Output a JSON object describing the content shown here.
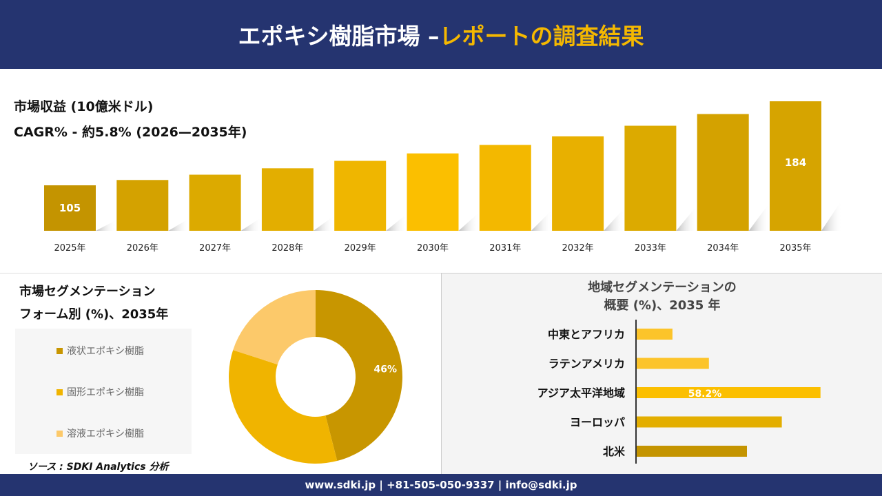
{
  "header": {
    "title_main": "エポキシ樹脂市場 – ",
    "title_accent": "レポートの調査結果"
  },
  "revenue": {
    "title": "市場収益 (10億米ドル)",
    "cagr": "CAGR% - 約5.8% (2026—2035年)"
  },
  "colors": {
    "navy": "#253470",
    "accent": "#f5b800"
  },
  "chart_data": [
    {
      "type": "bar",
      "categories": [
        "2025年",
        "2026年",
        "2027年",
        "2028年",
        "2029年",
        "2030年",
        "2031年",
        "2032年",
        "2033年",
        "2034年",
        "2035年"
      ],
      "values": [
        105,
        110,
        115,
        121,
        128,
        135,
        143,
        151,
        161,
        172,
        184
      ],
      "data_labels": {
        "0": "105",
        "10": "184"
      },
      "colors": [
        "#c49400",
        "#d4a200",
        "#dcaa00",
        "#e3ae00",
        "#efb600",
        "#fbbf00",
        "#f3b800",
        "#e8b000",
        "#dcaa00",
        "#d4a200",
        "#d6a400"
      ]
    },
    {
      "type": "pie",
      "title": "市場セグメンテーション フォーム別 (%)、2035年",
      "title_line1": "市場セグメンテーション",
      "title_line2": "フォーム別 (%)、2035年",
      "labels": [
        "液状エポキシ樹脂",
        "固形エポキシ樹脂",
        "溶液エポキシ樹脂"
      ],
      "values": [
        46,
        34,
        20
      ],
      "data_labels": [
        "46%",
        "",
        ""
      ],
      "colors": [
        "#c89600",
        "#f0b400",
        "#fcc96a"
      ],
      "legend": "left"
    },
    {
      "type": "bar",
      "orientation": "horizontal",
      "title_line1": "地域セグメンテーションの",
      "title_line2": "概要 (%)、2035 年",
      "categories": [
        "中東とアフリカ",
        "ラテンアメリカ",
        "アジア太平洋地域",
        "ヨーロッパ",
        "北米"
      ],
      "values": [
        11.5,
        23,
        58.2,
        46,
        35
      ],
      "data_labels": [
        "",
        "",
        "58.2%",
        "",
        ""
      ],
      "colors": [
        "#fcc42a",
        "#fcc42a",
        "#fbbf00",
        "#e3ae00",
        "#c49400"
      ]
    }
  ],
  "source": "ソース : SDKI Analytics 分析",
  "footer": "www.sdki.jp | +81-505-050-9337 | info@sdki.jp"
}
